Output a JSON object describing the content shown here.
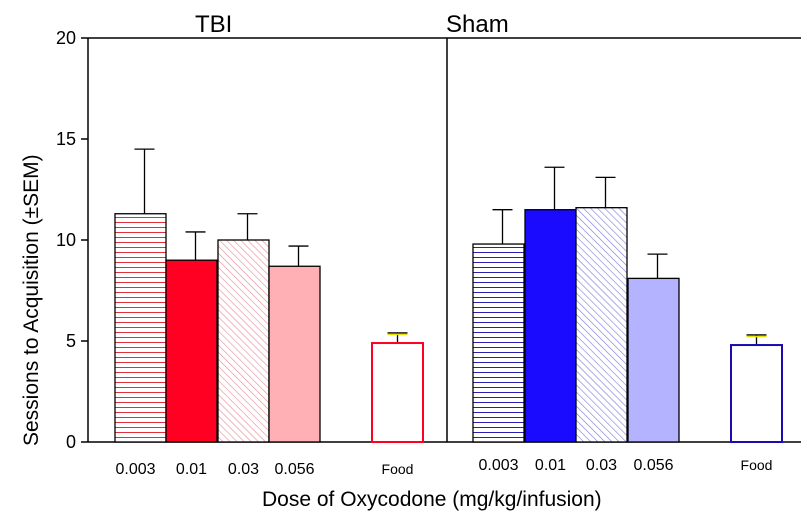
{
  "chart_data": {
    "type": "bar",
    "ylabel": "Sessions to Acquisition (±SEM)",
    "xlabel": "Dose of Oxycodone (mg/kg/infusion)",
    "ylim": [
      0,
      20
    ],
    "yticks": [
      "0",
      "5",
      "10",
      "15",
      "20"
    ],
    "panels": [
      {
        "title": "TBI",
        "categories": [
          "0.003",
          "0.01",
          "0.03",
          "0.056",
          "Food"
        ],
        "values": [
          11.3,
          9.0,
          10.0,
          8.7,
          4.9
        ],
        "errors": [
          3.2,
          1.4,
          1.3,
          1.0,
          0.5
        ],
        "fills": [
          "#ffffff",
          "#ff0022",
          "#ffffff",
          "#ffb0b4",
          "#ffffff"
        ],
        "patterns": [
          "horizontal-lines-red",
          "solid",
          "diagonal-hatch-red",
          "solid",
          "none"
        ],
        "outline": [
          "#000000",
          "#000000",
          "#000000",
          "#000000",
          "#ff0022"
        ]
      },
      {
        "title": "Sham",
        "categories": [
          "0.003",
          "0.01",
          "0.03",
          "0.056",
          "Food"
        ],
        "values": [
          9.8,
          11.5,
          11.6,
          8.1,
          4.8
        ],
        "errors": [
          1.7,
          2.1,
          1.5,
          1.2,
          0.5
        ],
        "fills": [
          "#ffffff",
          "#1a0bff",
          "#ffffff",
          "#b3b3ff",
          "#ffffff"
        ],
        "patterns": [
          "horizontal-lines-blue",
          "solid",
          "diagonal-hatch-blue",
          "solid",
          "none"
        ],
        "outline": [
          "#000000",
          "#000000",
          "#000000",
          "#000000",
          "#1a0bb0"
        ]
      }
    ],
    "food_error_color": "#e8e000",
    "grid": false,
    "legend": "none"
  }
}
